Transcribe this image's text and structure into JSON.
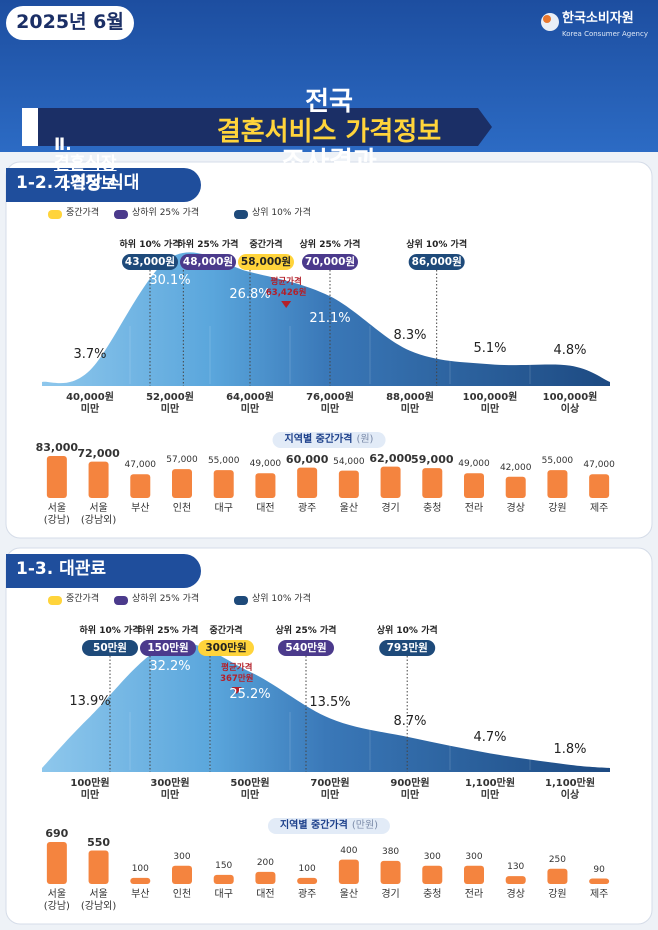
{
  "header": {
    "date": "2025년 6월",
    "org": "한국소비자원",
    "org_en": "Korea Consumer Agency",
    "title": [
      "전국",
      "결혼서비스 가격정보",
      "조사결과"
    ],
    "section": {
      "number": "Ⅱ.",
      "highlight": "결혼식장",
      "rest": "가격정보"
    }
  },
  "chart_data": [
    {
      "type": "area",
      "title": "1-2. 1인당 식대",
      "legend": [
        {
          "name": "중간가격",
          "color": "#ffd43b"
        },
        {
          "name": "상하위 25% 가격",
          "color": "#4b3a8c"
        },
        {
          "name": "상위 10% 가격",
          "color": "#1e4a7a"
        }
      ],
      "categories": [
        "40,000원\n미만",
        "52,000원\n미만",
        "64,000원\n미만",
        "76,000원\n미만",
        "88,000원\n미만",
        "100,000원\n미만",
        "100,000원\n이상"
      ],
      "values": [
        3.7,
        30.1,
        26.8,
        21.1,
        8.3,
        5.1,
        4.8
      ],
      "value_labels": [
        "3.7%",
        "30.1%",
        "26.8%",
        "21.1%",
        "8.3%",
        "5.1%",
        "4.8%"
      ],
      "xlim": [
        28000,
        112000
      ],
      "markers": [
        {
          "name": "하위 10% 가격",
          "value": 43000,
          "label": "43,000원",
          "color": "#1e4a7a"
        },
        {
          "name": "하위 25% 가격",
          "value": 48000,
          "label": "48,000원",
          "color": "#4b3a8c"
        },
        {
          "name": "중간가격",
          "value": 58000,
          "label": "58,000원",
          "color": "#ffd43b"
        },
        {
          "name": "상위 25% 가격",
          "value": 70000,
          "label": "70,000원",
          "color": "#4b3a8c"
        },
        {
          "name": "상위 10% 가격",
          "value": 86000,
          "label": "86,000원",
          "color": "#1e4a7a"
        }
      ],
      "mean": {
        "name": "평균가격",
        "value": 63426,
        "label": "63,426원",
        "color": "#b3202a"
      },
      "regional": {
        "type": "bar",
        "title": "지역별 중간가격",
        "unit": "(원)",
        "color": "#f4843f",
        "categories": [
          "서울\n(강남)",
          "서울\n(강남외)",
          "부산",
          "인천",
          "대구",
          "대전",
          "광주",
          "울산",
          "경기",
          "충청",
          "전라",
          "경상",
          "강원",
          "제주"
        ],
        "values": [
          83000,
          72000,
          47000,
          57000,
          55000,
          49000,
          60000,
          54000,
          62000,
          59000,
          49000,
          42000,
          55000,
          47000
        ],
        "value_labels": [
          "83,000",
          "72,000",
          "47,000",
          "57,000",
          "55,000",
          "49,000",
          "60,000",
          "54,000",
          "62,000",
          "59,000",
          "49,000",
          "42,000",
          "55,000",
          "47,000"
        ]
      }
    },
    {
      "type": "area",
      "title": "1-3. 대관료",
      "legend": [
        {
          "name": "중간가격",
          "color": "#ffd43b"
        },
        {
          "name": "상하위 25% 가격",
          "color": "#4b3a8c"
        },
        {
          "name": "상위 10% 가격",
          "color": "#1e4a7a"
        }
      ],
      "categories": [
        "100만원\n미만",
        "300만원\n미만",
        "500만원\n미만",
        "700만원\n미만",
        "900만원\n미만",
        "1,100만원\n미만",
        "1,100만원\n이상"
      ],
      "values": [
        13.9,
        32.2,
        25.2,
        13.5,
        8.7,
        4.7,
        1.8
      ],
      "value_labels": [
        "13.9%",
        "32.2%",
        "25.2%",
        "13.5%",
        "8.7%",
        "4.7%",
        "1.8%"
      ],
      "xlim": [
        -100,
        1300
      ],
      "markers": [
        {
          "name": "하위 10% 가격",
          "value": 50,
          "label": "50만원",
          "color": "#1e4a7a"
        },
        {
          "name": "하위 25% 가격",
          "value": 150,
          "label": "150만원",
          "color": "#4b3a8c"
        },
        {
          "name": "중간가격",
          "value": 300,
          "label": "300만원",
          "color": "#ffd43b"
        },
        {
          "name": "상위 25% 가격",
          "value": 540,
          "label": "540만원",
          "color": "#4b3a8c"
        },
        {
          "name": "상위 10% 가격",
          "value": 793,
          "label": "793만원",
          "color": "#1e4a7a"
        }
      ],
      "mean": {
        "name": "평균가격",
        "value": 367,
        "label": "367만원",
        "color": "#b3202a"
      },
      "regional": {
        "type": "bar",
        "title": "지역별 중간가격",
        "unit": "(만원)",
        "color": "#f4843f",
        "categories": [
          "서울\n(강남)",
          "서울\n(강남외)",
          "부산",
          "인천",
          "대구",
          "대전",
          "광주",
          "울산",
          "경기",
          "충청",
          "전라",
          "경상",
          "강원",
          "제주"
        ],
        "values": [
          690,
          550,
          100,
          300,
          150,
          200,
          100,
          400,
          380,
          300,
          300,
          130,
          250,
          90
        ]
      }
    }
  ]
}
